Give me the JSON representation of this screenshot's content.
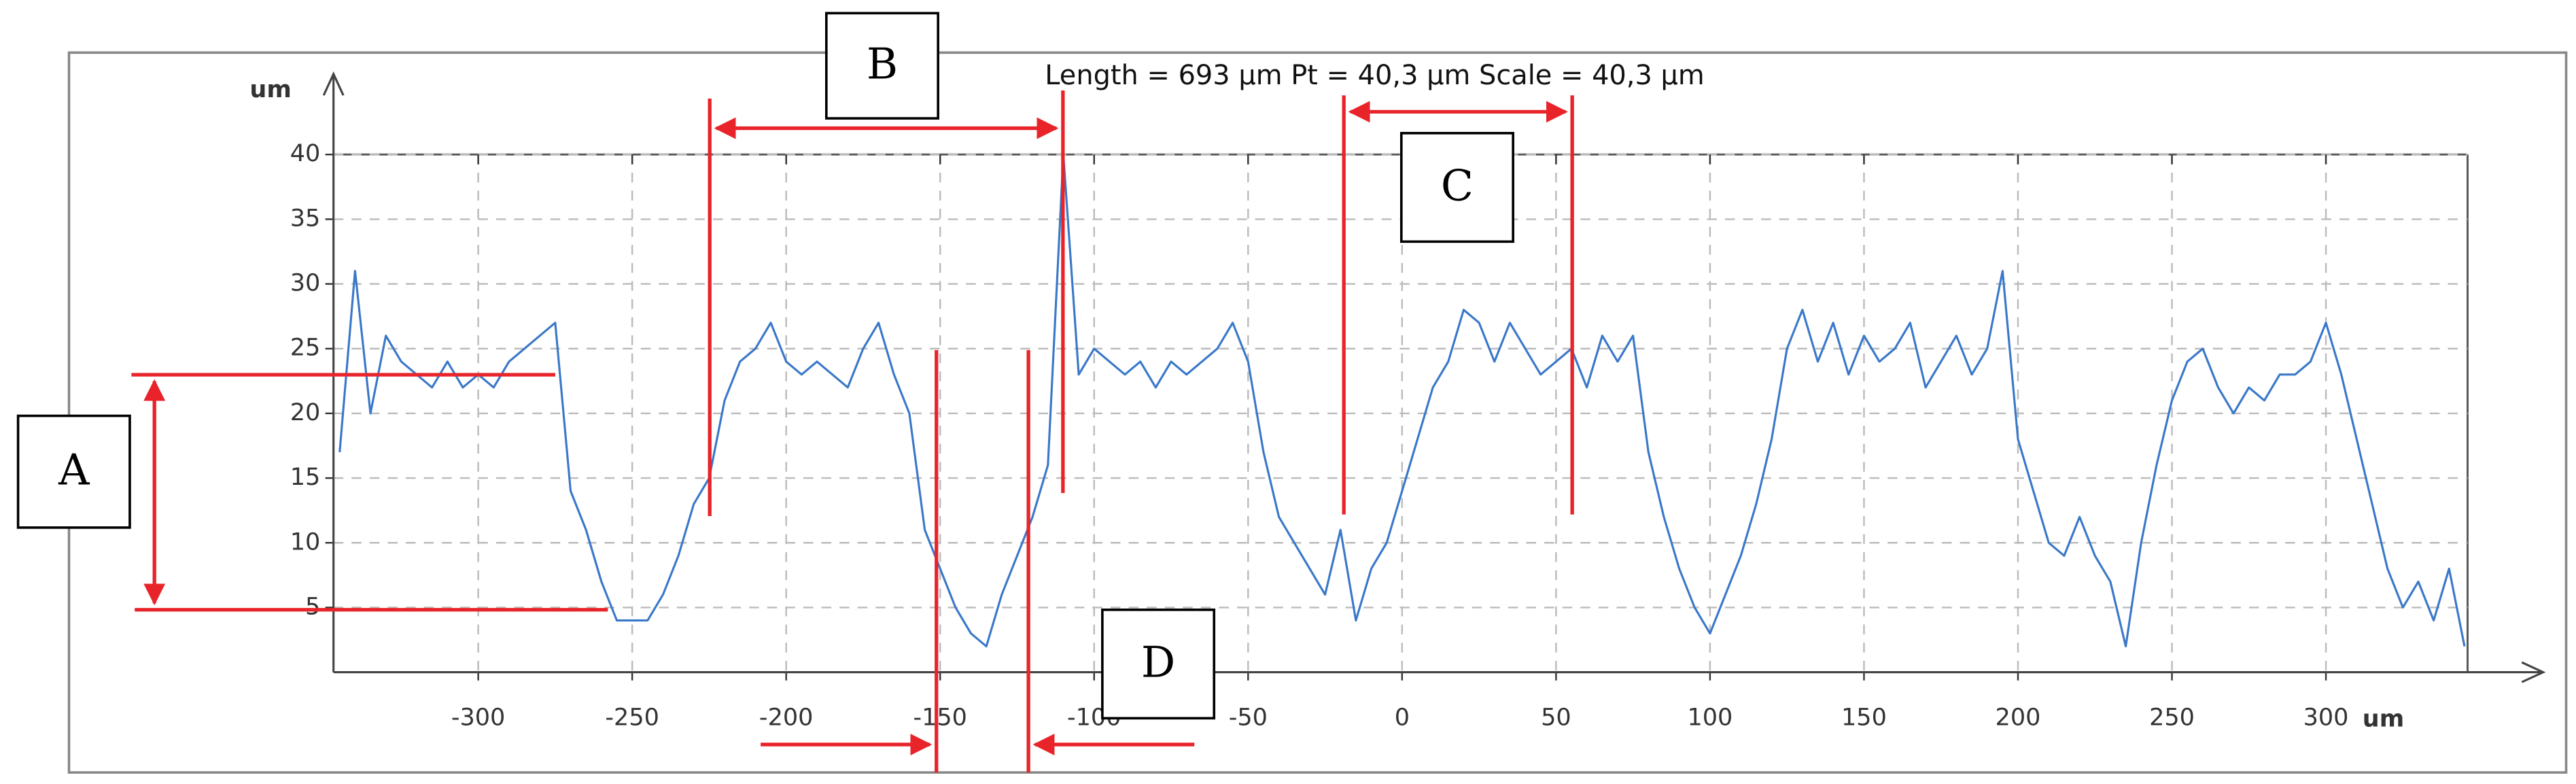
{
  "chart_data": {
    "type": "line",
    "title": "Length = 693 µm  Pt = 40,3 µm  Scale = 40,3 µm",
    "xlabel": "um",
    "ylabel": "um",
    "markers": [
      "A",
      "B",
      "C",
      "D"
    ],
    "xlim": [
      -347,
      346
    ],
    "ylim": [
      0,
      40
    ],
    "xticks": [
      -300,
      -250,
      -200,
      -150,
      -100,
      -50,
      0,
      50,
      100,
      150,
      200,
      250,
      300
    ],
    "yticks": [
      5,
      10,
      15,
      20,
      25,
      30,
      35,
      40
    ],
    "grid": true,
    "x": [
      -345,
      -340,
      -335,
      -330,
      -325,
      -320,
      -315,
      -310,
      -305,
      -300,
      -295,
      -290,
      -285,
      -280,
      -275,
      -270,
      -265,
      -260,
      -255,
      -250,
      -245,
      -240,
      -235,
      -230,
      -225,
      -220,
      -215,
      -210,
      -205,
      -200,
      -195,
      -190,
      -185,
      -180,
      -175,
      -170,
      -165,
      -160,
      -155,
      -150,
      -145,
      -140,
      -135,
      -130,
      -125,
      -120,
      -115,
      -110,
      -105,
      -100,
      -95,
      -90,
      -85,
      -80,
      -75,
      -70,
      -65,
      -60,
      -55,
      -50,
      -45,
      -40,
      -35,
      -30,
      -25,
      -20,
      -15,
      -10,
      -5,
      0,
      5,
      10,
      15,
      20,
      25,
      30,
      35,
      40,
      45,
      50,
      55,
      60,
      65,
      70,
      75,
      80,
      85,
      90,
      95,
      100,
      105,
      110,
      115,
      120,
      125,
      130,
      135,
      140,
      145,
      150,
      155,
      160,
      165,
      170,
      175,
      180,
      185,
      190,
      195,
      200,
      205,
      210,
      215,
      220,
      225,
      230,
      235,
      240,
      245,
      250,
      255,
      260,
      265,
      270,
      275,
      280,
      285,
      290,
      295,
      300,
      305,
      310,
      315,
      320,
      325,
      330,
      335,
      340,
      345
    ],
    "series": [
      {
        "color": "#3a78c9",
        "values": [
          17,
          31,
          20,
          26,
          24,
          23,
          22,
          24,
          22,
          23,
          22,
          24,
          25,
          26,
          27,
          14,
          11,
          7,
          4,
          4,
          4,
          6,
          9,
          13,
          15,
          21,
          24,
          25,
          27,
          24,
          23,
          24,
          23,
          22,
          25,
          27,
          23,
          20,
          11,
          8,
          5,
          3,
          2,
          6,
          9,
          12,
          16,
          40,
          23,
          25,
          24,
          23,
          24,
          22,
          24,
          23,
          24,
          25,
          27,
          24,
          17,
          12,
          10,
          8,
          6,
          11,
          4,
          8,
          10,
          14,
          18,
          22,
          24,
          28,
          27,
          24,
          27,
          25,
          23,
          24,
          25,
          22,
          26,
          24,
          26,
          17,
          12,
          8,
          5,
          3,
          6,
          9,
          13,
          18,
          25,
          28,
          24,
          27,
          23,
          26,
          24,
          25,
          27,
          22,
          24,
          26,
          23,
          25,
          31,
          18,
          14,
          10,
          9,
          12,
          9,
          7,
          2,
          10,
          16,
          21,
          24,
          25,
          22,
          20,
          22,
          21,
          23,
          23,
          24,
          27,
          23,
          18,
          13,
          8,
          5,
          7,
          4,
          8,
          2
        ]
      }
    ]
  }
}
